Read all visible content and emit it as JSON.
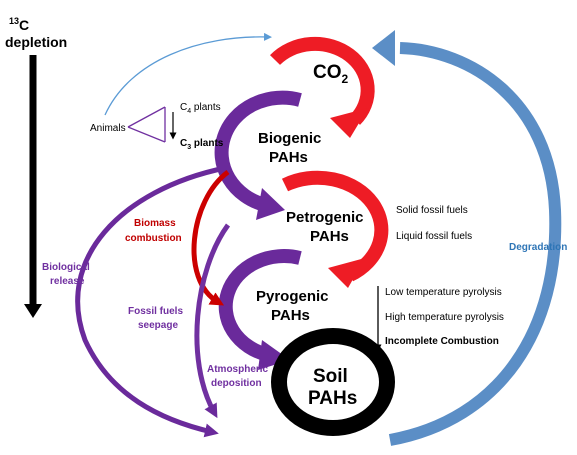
{
  "colors": {
    "co2": "#ee1c25",
    "biogenic": "#6a2a9b",
    "petrogenic": "#ee1c25",
    "pyrogenic": "#6a2a9b",
    "soil": "#000000",
    "degradation": "#5b8ec6",
    "biomass": "#cc0000",
    "fossil": "#7030a0",
    "animals_arrow": "#5b9bd5"
  },
  "depletion": {
    "superscript": "13",
    "element": "C",
    "word": "depletion"
  },
  "nodes": {
    "co2": {
      "label": "CO",
      "sub": "2"
    },
    "biogenic": {
      "line1": "Biogenic",
      "line2": "PAHs"
    },
    "petrogenic": {
      "line1": "Petrogenic",
      "line2": "PAHs"
    },
    "pyrogenic": {
      "line1": "Pyrogenic",
      "line2": "PAHs"
    },
    "soil": {
      "line1": "Soil",
      "line2": "PAHs"
    }
  },
  "plants": {
    "animals": "Animals",
    "c4_prefix": "C",
    "c4_sub": "4",
    "c4_suffix": " plants",
    "c3_prefix": "C",
    "c3_sub": "3",
    "c3_suffix": " plants"
  },
  "petrogenic_sources": [
    "Solid fossil fuels",
    "Liquid fossil fuels"
  ],
  "pyrogenic_sources": [
    "Low temperature pyrolysis",
    "High temperature pyrolysis",
    "Incomplete Combustion"
  ],
  "side_labels": {
    "biomass_1": "Biomass",
    "biomass_2": "combustion",
    "biological_1": "Biological",
    "biological_2": "release",
    "fossil_1": "Fossil fuels",
    "fossil_2": "seepage",
    "atmos_1": "Atmospheric",
    "atmos_2": "deposition",
    "degradation": "Degradation"
  }
}
